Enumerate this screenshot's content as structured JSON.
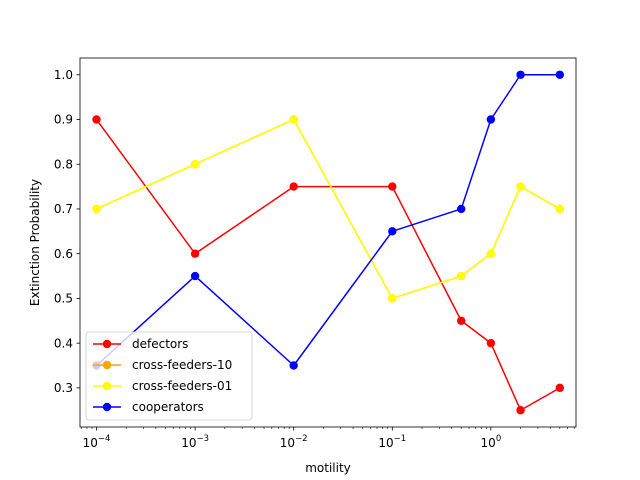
{
  "chart_data": {
    "type": "line",
    "title": "",
    "xlabel": "motility",
    "ylabel": "Extinction Probability",
    "xscale": "log",
    "xlim": [
      6.8e-05,
      7.3
    ],
    "ylim": [
      0.2125,
      1.0375
    ],
    "grid": false,
    "legend_position": "lower-left",
    "x_tick_labels": [
      {
        "base": "10",
        "exp": "−4",
        "value": 0.0001
      },
      {
        "base": "10",
        "exp": "−3",
        "value": 0.001
      },
      {
        "base": "10",
        "exp": "−2",
        "value": 0.01
      },
      {
        "base": "10",
        "exp": "−1",
        "value": 0.1
      },
      {
        "base": "10",
        "exp": "0",
        "value": 1
      }
    ],
    "y_tick_labels": [
      "0.3",
      "0.4",
      "0.5",
      "0.6",
      "0.7",
      "0.8",
      "0.9",
      "1.0"
    ],
    "y_tick_values": [
      0.3,
      0.4,
      0.5,
      0.6,
      0.7,
      0.8,
      0.9,
      1.0
    ],
    "x": [
      0.0001,
      0.001,
      0.01,
      0.1,
      0.5,
      1,
      2,
      5
    ],
    "series": [
      {
        "name": "defectors",
        "color": "#ff0000",
        "values": [
          0.9,
          0.6,
          0.75,
          0.75,
          0.45,
          0.4,
          0.25,
          0.3
        ]
      },
      {
        "name": "cross-feeders-10",
        "color": "#ffa500",
        "values": [
          0.7,
          0.8,
          0.9,
          0.5,
          0.55,
          0.6,
          0.75,
          0.7
        ]
      },
      {
        "name": "cross-feeders-01",
        "color": "#ffff00",
        "values": [
          0.7,
          0.8,
          0.9,
          0.5,
          0.55,
          0.6,
          0.75,
          0.7
        ]
      },
      {
        "name": "cooperators",
        "color": "#0000ff",
        "values": [
          0.35,
          0.55,
          0.35,
          0.65,
          0.7,
          0.9,
          1.0,
          1.0
        ]
      }
    ]
  }
}
